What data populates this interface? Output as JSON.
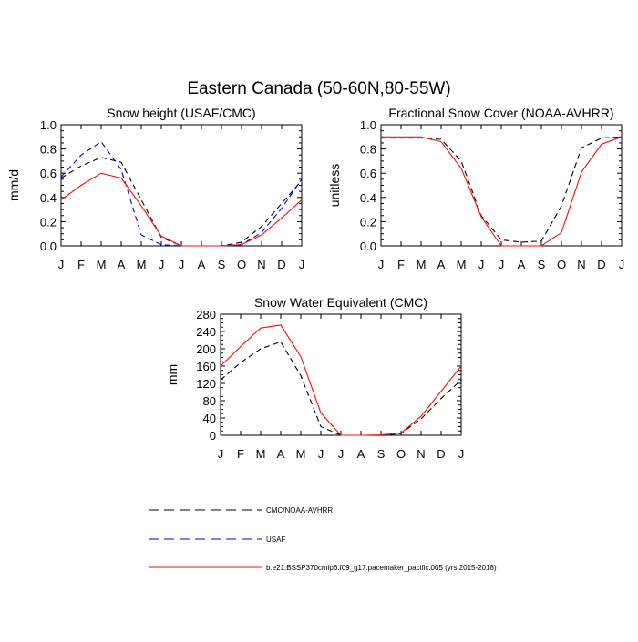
{
  "title": "Eastern Canada (50-60N,80-55W)",
  "months": [
    "J",
    "F",
    "M",
    "A",
    "M",
    "J",
    "J",
    "A",
    "S",
    "O",
    "N",
    "D",
    "J"
  ],
  "colors": {
    "obs": "#000000",
    "usaf": "#0000dd",
    "model": "#ee1111"
  },
  "legend": {
    "entries": [
      {
        "label": "CMC/NOAA-AVHRR",
        "color": "#000000",
        "dash": true
      },
      {
        "label": "USAF",
        "color": "#0000dd",
        "dash": true
      },
      {
        "label": "b.e21.BSSP370cmip6.f09_g17.pacemaker_pacific.005 (yrs 2015-2018)",
        "color": "#ee1111",
        "dash": false
      }
    ]
  },
  "chart_data": [
    {
      "type": "line",
      "title": "Snow height (USAF/CMC)",
      "ylabel": "mm/d",
      "ylim": [
        0,
        1.0
      ],
      "yticks": [
        "0.0",
        "0.2",
        "0.4",
        "0.6",
        "0.8",
        "1.0"
      ],
      "ytick_values": [
        0,
        0.2,
        0.4,
        0.6,
        0.8,
        1.0
      ],
      "x": [
        "J",
        "F",
        "M",
        "A",
        "M",
        "J",
        "J",
        "A",
        "S",
        "O",
        "N",
        "D",
        "J"
      ],
      "series": [
        {
          "name": "CMC/NOAA-AVHRR",
          "color": "#000000",
          "dash": true,
          "values": [
            0.56,
            0.66,
            0.73,
            0.69,
            0.38,
            0.07,
            0.0,
            0.0,
            0.0,
            0.03,
            0.16,
            0.35,
            0.54
          ]
        },
        {
          "name": "USAF",
          "color": "#0000dd",
          "dash": true,
          "values": [
            0.57,
            0.75,
            0.86,
            0.63,
            0.09,
            0.01,
            0.0,
            0.0,
            0.0,
            0.01,
            0.11,
            0.31,
            0.55
          ]
        },
        {
          "name": "b.e21.BSSP370cmip6.f09_g17.pacemaker_pacific.005 (yrs 2015-2018)",
          "color": "#ee1111",
          "dash": false,
          "values": [
            0.38,
            0.5,
            0.6,
            0.56,
            0.33,
            0.08,
            0.0,
            0.0,
            0.0,
            0.01,
            0.09,
            0.23,
            0.38
          ]
        }
      ]
    },
    {
      "type": "line",
      "title": "Fractional Snow Cover (NOAA-AVHRR)",
      "ylabel": "unitless",
      "ylim": [
        0,
        1.0
      ],
      "yticks": [
        "0.0",
        "0.2",
        "0.4",
        "0.6",
        "0.8",
        "1.0"
      ],
      "ytick_values": [
        0,
        0.2,
        0.4,
        0.6,
        0.8,
        1.0
      ],
      "x": [
        "J",
        "F",
        "M",
        "A",
        "M",
        "J",
        "J",
        "A",
        "S",
        "O",
        "N",
        "D",
        "J"
      ],
      "series": [
        {
          "name": "CMC/NOAA-AVHRR",
          "color": "#000000",
          "dash": true,
          "values": [
            0.89,
            0.89,
            0.89,
            0.88,
            0.7,
            0.25,
            0.05,
            0.03,
            0.04,
            0.33,
            0.81,
            0.89,
            0.9
          ]
        },
        {
          "name": "b.e21.BSSP370cmip6.f09_g17.pacemaker_pacific.005 (yrs 2015-2018)",
          "color": "#ee1111",
          "dash": false,
          "values": [
            0.9,
            0.9,
            0.9,
            0.86,
            0.64,
            0.24,
            0.0,
            0.0,
            0.0,
            0.11,
            0.61,
            0.84,
            0.9
          ]
        }
      ]
    },
    {
      "type": "line",
      "title": "Snow Water Equivalent (CMC)",
      "ylabel": "mm",
      "ylim": [
        0,
        280
      ],
      "yticks": [
        "0",
        "40",
        "80",
        "120",
        "160",
        "200",
        "240",
        "280"
      ],
      "ytick_values": [
        0,
        40,
        80,
        120,
        160,
        200,
        240,
        280
      ],
      "x": [
        "J",
        "F",
        "M",
        "A",
        "M",
        "J",
        "J",
        "A",
        "S",
        "O",
        "N",
        "D",
        "J"
      ],
      "series": [
        {
          "name": "CMC/NOAA-AVHRR",
          "color": "#000000",
          "dash": true,
          "values": [
            128,
            168,
            200,
            216,
            138,
            20,
            0,
            0,
            0,
            4,
            38,
            85,
            128
          ]
        },
        {
          "name": "b.e21.BSSP370cmip6.f09_g17.pacemaker_pacific.005 (yrs 2015-2018)",
          "color": "#ee1111",
          "dash": false,
          "values": [
            160,
            205,
            248,
            255,
            182,
            52,
            0,
            0,
            1,
            5,
            44,
            102,
            160
          ]
        }
      ]
    }
  ]
}
